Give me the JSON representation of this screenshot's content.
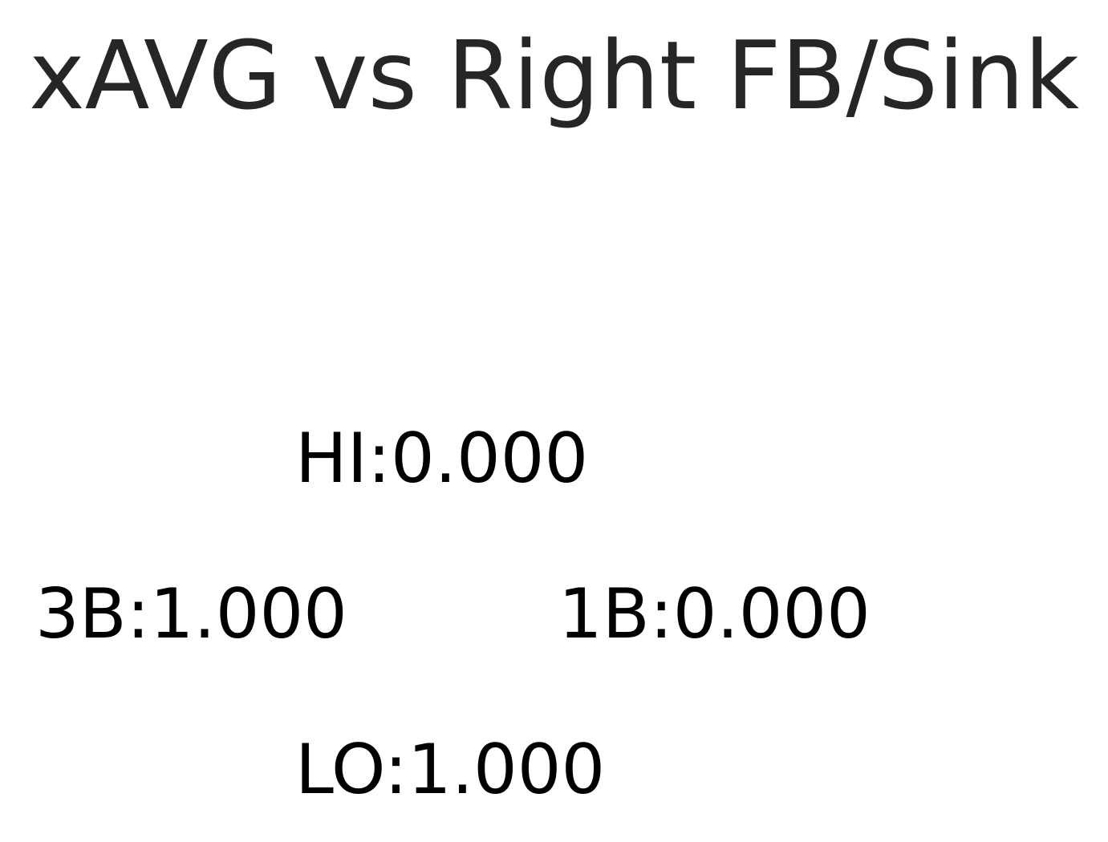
{
  "chart_data": {
    "type": "table",
    "title": "xAVG vs Right FB/Sink",
    "zones": [
      {
        "zone": "HI",
        "value": "0.000",
        "text": "HI:0.000"
      },
      {
        "zone": "3B",
        "value": "1.000",
        "text": "3B:1.000"
      },
      {
        "zone": "1B",
        "value": "0.000",
        "text": "1B:0.000"
      },
      {
        "zone": "LO",
        "value": "1.000",
        "text": "LO:1.000"
      }
    ],
    "colors": {
      "title": "#262626",
      "labels": "#000000",
      "background": "#ffffff"
    }
  }
}
